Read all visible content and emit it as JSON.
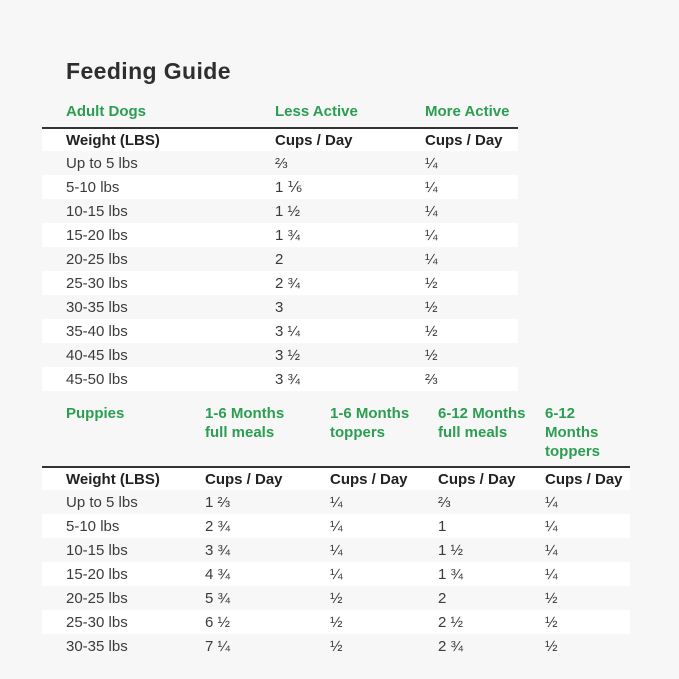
{
  "page": {
    "title": "Feeding Guide"
  },
  "colors": {
    "background": "#f7f7f7",
    "accent_green": "#2a9e51",
    "title_text": "#2e2e2e",
    "body_text": "#3b3b3b",
    "row_stripe": "#ffffff",
    "header_rule": "#333333"
  },
  "adult_table": {
    "section_label": "Adult Dogs",
    "col_headers": [
      "Less Active",
      "More Active"
    ],
    "weight_header": "Weight (LBS)",
    "cups_header": "Cups / Day",
    "rows": [
      {
        "weight": "Up to 5 lbs",
        "less_active": "⅔",
        "more_active": "¼"
      },
      {
        "weight": "5-10 lbs",
        "less_active": "1 ⅙",
        "more_active": "¼"
      },
      {
        "weight": "10-15 lbs",
        "less_active": "1 ½",
        "more_active": "¼"
      },
      {
        "weight": "15-20 lbs",
        "less_active": "1 ¾",
        "more_active": "¼"
      },
      {
        "weight": "20-25 lbs",
        "less_active": "2",
        "more_active": "¼"
      },
      {
        "weight": "25-30 lbs",
        "less_active": "2 ¾",
        "more_active": "½"
      },
      {
        "weight": "30-35 lbs",
        "less_active": "3",
        "more_active": "½"
      },
      {
        "weight": "35-40 lbs",
        "less_active": "3 ¼",
        "more_active": "½"
      },
      {
        "weight": "40-45 lbs",
        "less_active": "3 ½",
        "more_active": "½"
      },
      {
        "weight": "45-50 lbs",
        "less_active": "3 ¾",
        "more_active": "⅔"
      }
    ]
  },
  "puppy_table": {
    "section_label": "Puppies",
    "col_headers": [
      {
        "line1": "1-6 Months",
        "line2": "full meals"
      },
      {
        "line1": "1-6 Months",
        "line2": "toppers"
      },
      {
        "line1": "6-12 Months",
        "line2": "full meals"
      },
      {
        "line1": "6-12 Months",
        "line2": "toppers"
      }
    ],
    "weight_header": "Weight (LBS)",
    "cups_header": "Cups / Day",
    "rows": [
      {
        "weight": "Up to 5 lbs",
        "c1": "1 ⅔",
        "c2": "¼",
        "c3": "⅔",
        "c4": "¼"
      },
      {
        "weight": "5-10 lbs",
        "c1": "2 ¾",
        "c2": "¼",
        "c3": "1",
        "c4": "¼"
      },
      {
        "weight": "10-15 lbs",
        "c1": "3 ¾",
        "c2": "¼",
        "c3": "1 ½",
        "c4": "¼"
      },
      {
        "weight": "15-20 lbs",
        "c1": "4 ¾",
        "c2": "¼",
        "c3": "1 ¾",
        "c4": "¼"
      },
      {
        "weight": "20-25 lbs",
        "c1": "5 ¾",
        "c2": "½",
        "c3": "2",
        "c4": "½"
      },
      {
        "weight": "25-30 lbs",
        "c1": "6 ½",
        "c2": "½",
        "c3": "2 ½",
        "c4": "½"
      },
      {
        "weight": "30-35 lbs",
        "c1": "7 ¼",
        "c2": "½",
        "c3": "2 ¾",
        "c4": "½"
      }
    ]
  }
}
